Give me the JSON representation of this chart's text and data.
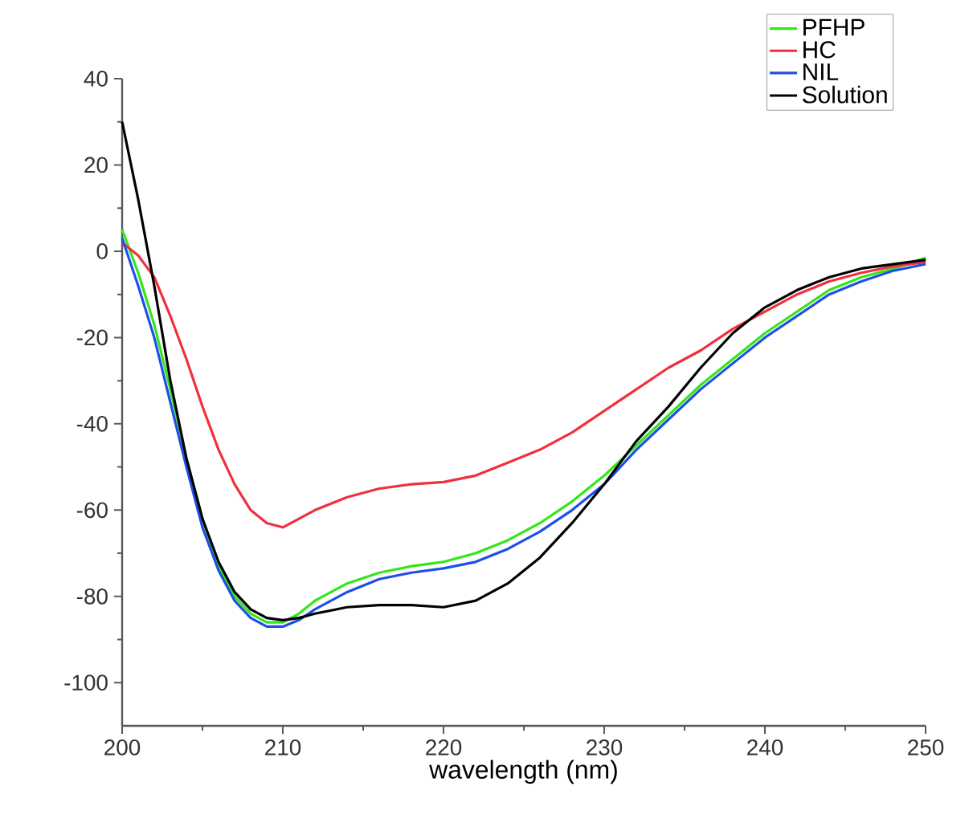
{
  "chart_data": {
    "type": "line",
    "xlabel": "wavelength (nm)",
    "x": [
      200,
      201,
      202,
      203,
      204,
      205,
      206,
      207,
      208,
      209,
      210,
      211,
      212,
      214,
      216,
      218,
      220,
      222,
      224,
      226,
      228,
      230,
      232,
      234,
      236,
      238,
      240,
      242,
      244,
      246,
      248,
      250
    ],
    "series": [
      {
        "name": "PFHP",
        "color": "#33e61a",
        "values": [
          5,
          -5,
          -17,
          -32,
          -48,
          -62,
          -73,
          -80,
          -84,
          -86,
          -86,
          -84,
          -81,
          -77,
          -74.5,
          -73,
          -72,
          -70,
          -67,
          -63,
          -58,
          -52,
          -45,
          -38,
          -31,
          -25,
          -19,
          -14,
          -9,
          -6,
          -4,
          -1.5
        ]
      },
      {
        "name": "HC",
        "color": "#f0303c",
        "values": [
          2,
          -1,
          -6,
          -15,
          -25,
          -36,
          -46,
          -54,
          -60,
          -63,
          -64,
          -62,
          -60,
          -57,
          -55,
          -54,
          -53.5,
          -52,
          -49,
          -46,
          -42,
          -37,
          -32,
          -27,
          -23,
          -18,
          -14,
          -10,
          -7,
          -5,
          -3.5,
          -2.5
        ]
      },
      {
        "name": "NIL",
        "color": "#1f4fe8",
        "values": [
          3,
          -8,
          -20,
          -35,
          -50,
          -64,
          -74,
          -81,
          -85,
          -87,
          -87,
          -85.5,
          -83,
          -79,
          -76,
          -74.5,
          -73.5,
          -72,
          -69,
          -65,
          -60,
          -54,
          -46,
          -39,
          -32,
          -26,
          -20,
          -15,
          -10,
          -7,
          -4.5,
          -3
        ]
      },
      {
        "name": "Solution",
        "color": "#000000",
        "values": [
          30,
          12,
          -8,
          -30,
          -48,
          -62,
          -72,
          -79,
          -83,
          -85,
          -85.5,
          -85,
          -84,
          -82.5,
          -82,
          -82,
          -82.5,
          -81,
          -77,
          -71,
          -63,
          -54,
          -44,
          -36,
          -27,
          -19,
          -13,
          -9,
          -6,
          -4,
          -3,
          -2
        ]
      }
    ],
    "xlim": [
      200,
      250
    ],
    "ylim": [
      -110,
      40
    ],
    "xticks": [
      200,
      210,
      220,
      230,
      240,
      250
    ],
    "yticks": [
      -100,
      -80,
      -60,
      -40,
      -20,
      0,
      20,
      40
    ],
    "legend": "top right",
    "marker": "none",
    "line_style": "solid",
    "grid": false
  }
}
